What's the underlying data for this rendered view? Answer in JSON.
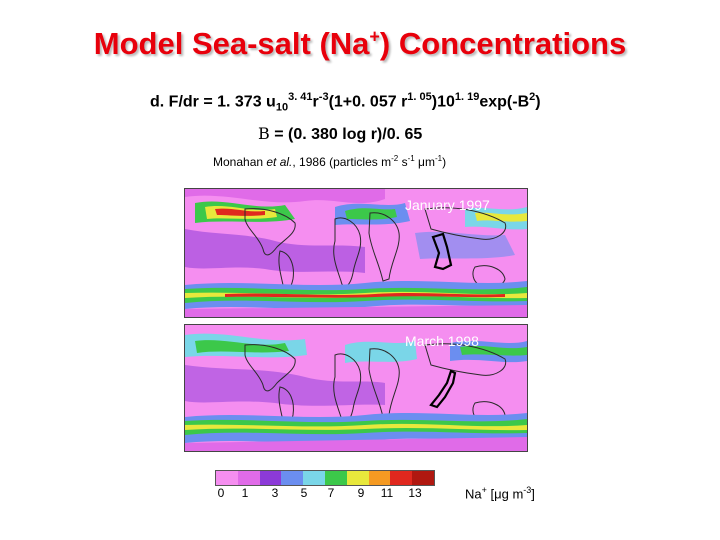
{
  "title": {
    "main": "Model Sea-salt (Na",
    "sup": "+",
    "end": ") Concentrations"
  },
  "equation": {
    "p1": "d. F/dr = 1. 373 u",
    "sub1": "10",
    "sup1": "3. 41",
    "p2": "r",
    "sup2": "-3",
    "p3": "(1+0. 057 r",
    "sup3": "1. 05",
    "p4": ")10",
    "sup4": "1. 19",
    "p5": "exp(-B",
    "sup5": "2",
    "p6": ")"
  },
  "equation_b": {
    "symbol": "B",
    "rest": " = (0. 380 log r)/0. 65"
  },
  "citation": {
    "author": "Monahan ",
    "etal": "et al.",
    "year": ", 1986 (particles m",
    "sup1": "-2",
    "mid": " s",
    "sup2": "-1",
    "unit": " μm",
    "sup3": "-1",
    "end": ")"
  },
  "maps": [
    {
      "label": "January 1997"
    },
    {
      "label": "March 1998"
    }
  ],
  "legend": {
    "colors": [
      "#f58ef0",
      "#e06be8",
      "#8c3ad8",
      "#6b8ef0",
      "#7ad6e8",
      "#3cc84a",
      "#e8e83c",
      "#f59a22",
      "#e0281e",
      "#b01810"
    ],
    "ticks": [
      "0",
      "1",
      "3",
      "5",
      "7",
      "9",
      "11",
      "13"
    ]
  },
  "units": {
    "pre": "Na",
    "sup": "+",
    "mid": " [μg m",
    "sup2": "-3",
    "end": "]"
  }
}
